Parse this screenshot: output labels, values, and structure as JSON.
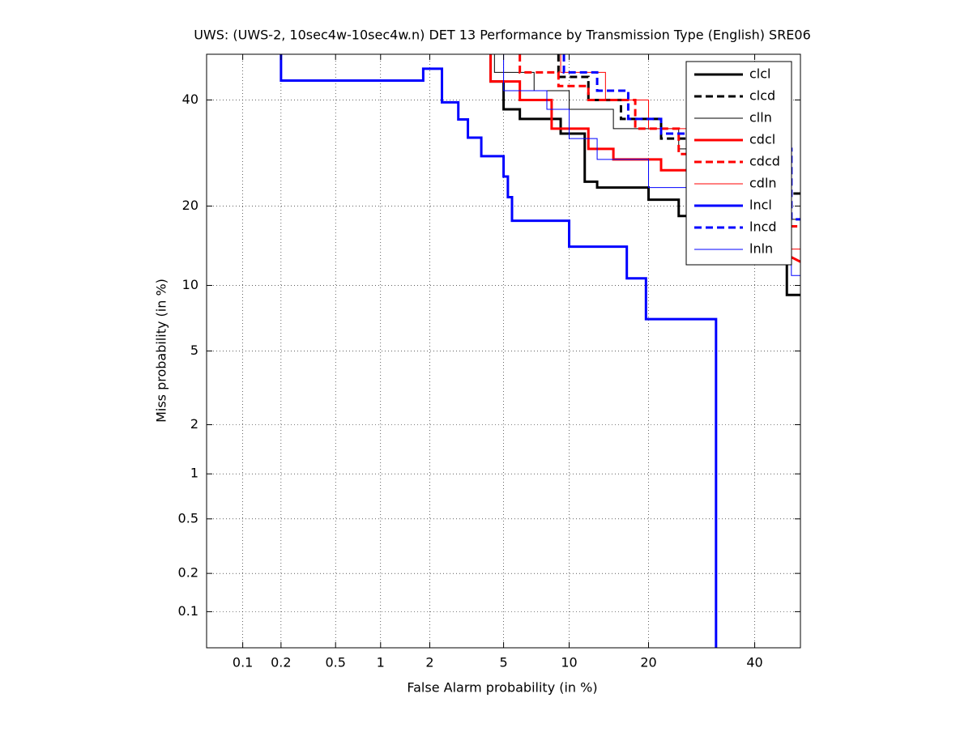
{
  "chart_data": {
    "type": "line",
    "title": "UWS: (UWS-2, 10sec4w-10sec4w.n) DET 13 Performance by Transmission Type (English) SRE06",
    "x_label": "False Alarm probability (in %)",
    "y_label": "Miss probability (in %)",
    "scale": "probit",
    "grid": true,
    "legend": "upper right",
    "xlim": [
      0.05,
      50
    ],
    "ylim": [
      0.05,
      50
    ],
    "xticks": [
      0.1,
      0.2,
      0.5,
      1,
      2,
      5,
      10,
      20,
      40
    ],
    "yticks": [
      0.1,
      0.2,
      0.5,
      1,
      2,
      5,
      10,
      20,
      40
    ],
    "series": [
      {
        "name": "clcl",
        "color": "#000000",
        "linewidth": 3,
        "dash": "solid",
        "x": [
          4.3,
          4.3,
          5,
          5,
          6,
          6,
          9.2,
          9.2,
          11.6,
          11.6,
          13,
          13,
          20,
          20,
          25,
          25,
          42,
          42,
          47,
          47,
          50
        ],
        "values": [
          50,
          44,
          44,
          38,
          38,
          36,
          36,
          33,
          33,
          24,
          24,
          23,
          23,
          21,
          21,
          18.5,
          18.5,
          15,
          15,
          9.1,
          9.1
        ]
      },
      {
        "name": "clcd",
        "color": "#000000",
        "linewidth": 3,
        "dash": "dashed",
        "x": [
          9,
          9,
          12,
          12,
          16,
          16,
          22,
          22,
          28,
          28,
          40,
          40,
          50
        ],
        "values": [
          50,
          45,
          45,
          40,
          40,
          36,
          36,
          32,
          32,
          29,
          29,
          22,
          22
        ]
      },
      {
        "name": "clln",
        "color": "#000000",
        "linewidth": 1,
        "dash": "solid",
        "x": [
          4.5,
          4.5,
          7,
          7,
          10,
          10,
          15,
          15,
          25,
          25,
          40,
          40,
          50
        ],
        "values": [
          50,
          46,
          46,
          42,
          42,
          38,
          38,
          34,
          34,
          30,
          30,
          18,
          18
        ]
      },
      {
        "name": "cdcl",
        "color": "#ff0000",
        "linewidth": 3,
        "dash": "solid",
        "x": [
          4.3,
          4.3,
          6,
          6,
          8.4,
          8.4,
          12,
          12,
          15,
          15,
          22,
          22,
          28,
          28,
          38,
          38,
          50
        ],
        "values": [
          50,
          44,
          44,
          40,
          40,
          34,
          34,
          30,
          30,
          28,
          28,
          26,
          26,
          23,
          23,
          16,
          12.5
        ]
      },
      {
        "name": "cdcd",
        "color": "#ff0000",
        "linewidth": 3,
        "dash": "dashed",
        "x": [
          6,
          6,
          9,
          9,
          12,
          12,
          18,
          18,
          25,
          25,
          32,
          32,
          45,
          45,
          50
        ],
        "values": [
          50,
          46,
          46,
          43,
          43,
          40,
          40,
          34,
          34,
          29,
          29,
          25,
          25,
          17,
          17
        ]
      },
      {
        "name": "cdln",
        "color": "#ff0000",
        "linewidth": 1,
        "dash": "solid",
        "x": [
          9.2,
          9.2,
          14,
          14,
          20,
          20,
          30,
          30,
          45,
          45,
          50
        ],
        "values": [
          50,
          46,
          46,
          40,
          40,
          34,
          34,
          28,
          28,
          14,
          14
        ]
      },
      {
        "name": "lncl",
        "color": "#0000ff",
        "linewidth": 3,
        "dash": "solid",
        "x": [
          0.2,
          0.2,
          1.83,
          1.83,
          2.35,
          2.35,
          2.9,
          2.9,
          3.27,
          3.27,
          3.85,
          3.85,
          5,
          5,
          5.25,
          5.25,
          5.5,
          5.5,
          10,
          10,
          16.8,
          16.8,
          19.6,
          19.6,
          32,
          32,
          32
        ],
        "values": [
          50,
          44.2,
          44.2,
          46.8,
          46.8,
          39.5,
          39.5,
          35.9,
          35.9,
          32.2,
          32.2,
          28.6,
          28.6,
          24.9,
          24.9,
          21.4,
          21.4,
          17.8,
          17.8,
          14.3,
          14.3,
          10.7,
          10.7,
          7.1,
          7.1,
          3.5,
          0.05
        ]
      },
      {
        "name": "lncd",
        "color": "#0000ff",
        "linewidth": 3,
        "dash": "dashed",
        "x": [
          9.5,
          9.5,
          13,
          13,
          17,
          17,
          22,
          22,
          32,
          32,
          48,
          48,
          50
        ],
        "values": [
          50,
          46,
          46,
          42,
          42,
          36,
          36,
          33,
          33,
          30,
          30,
          18,
          18
        ]
      },
      {
        "name": "lnln",
        "color": "#0000ff",
        "linewidth": 1,
        "dash": "solid",
        "x": [
          5,
          5,
          8,
          8,
          10,
          10,
          13,
          13,
          20,
          20,
          30,
          30,
          48,
          48,
          50
        ],
        "values": [
          50,
          42,
          42,
          38,
          38,
          32,
          32,
          28,
          28,
          23,
          23,
          18,
          18,
          11,
          11
        ]
      }
    ]
  }
}
